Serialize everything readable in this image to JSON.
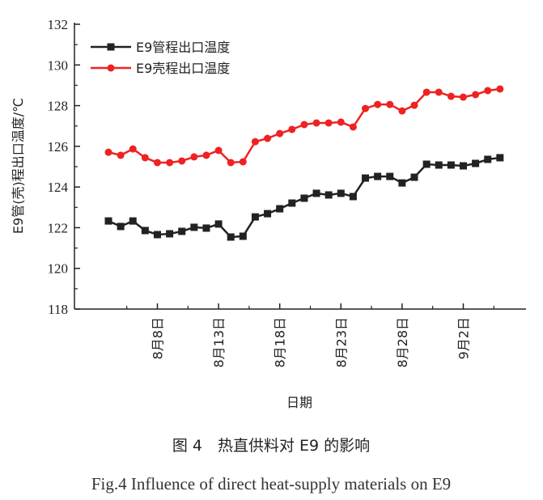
{
  "chart_data": {
    "type": "line",
    "title": "",
    "xlabel": "日期",
    "ylabel": "E9管(壳)程出口温度/℃",
    "ylim": [
      118,
      132
    ],
    "yticks": [
      "118",
      "120",
      "122",
      "124",
      "126",
      "128",
      "130",
      "132"
    ],
    "xtick_labels": [
      "8月8日",
      "8月13日",
      "8月18日",
      "8月23日",
      "8月28日",
      "9月2日"
    ],
    "xtick_indices": [
      4,
      9,
      14,
      19,
      24,
      29
    ],
    "x": [
      "8月4日",
      "8月5日",
      "8月6日",
      "8月7日",
      "8月8日",
      "8月9日",
      "8月10日",
      "8月11日",
      "8月12日",
      "8月13日",
      "8月14日",
      "8月15日",
      "8月16日",
      "8月17日",
      "8月18日",
      "8月19日",
      "8月20日",
      "8月21日",
      "8月22日",
      "8月23日",
      "8月24日",
      "8月25日",
      "8月26日",
      "8月27日",
      "8月28日",
      "8月29日",
      "8月30日",
      "8月31日",
      "9月1日",
      "9月2日",
      "9月3日",
      "9月4日",
      "9月5日"
    ],
    "legend_position": "top-left",
    "grid": false,
    "series": [
      {
        "name": "E9管程出口温度",
        "color": "#222222",
        "marker": "square",
        "values": [
          122.33,
          122.06,
          122.33,
          121.86,
          121.66,
          121.7,
          121.82,
          122.02,
          121.98,
          122.18,
          121.54,
          121.58,
          122.53,
          122.69,
          122.93,
          123.21,
          123.45,
          123.69,
          123.61,
          123.69,
          123.53,
          124.44,
          124.52,
          124.52,
          124.2,
          124.48,
          125.12,
          125.08,
          125.08,
          125.04,
          125.16,
          125.36,
          125.44
        ]
      },
      {
        "name": "E9壳程出口温度",
        "color": "#ee2222",
        "marker": "circle",
        "values": [
          125.71,
          125.56,
          125.87,
          125.44,
          125.2,
          125.2,
          125.28,
          125.48,
          125.56,
          125.8,
          125.2,
          125.24,
          126.23,
          126.39,
          126.63,
          126.83,
          127.07,
          127.15,
          127.15,
          127.19,
          126.95,
          127.86,
          128.06,
          128.06,
          127.74,
          128.02,
          128.66,
          128.66,
          128.46,
          128.42,
          128.54,
          128.74,
          128.82
        ]
      }
    ]
  },
  "caption": {
    "cn": "图 4　热直供料对 E9 的影响",
    "en": "Fig.4  Influence of direct heat-supply materials on E9"
  }
}
